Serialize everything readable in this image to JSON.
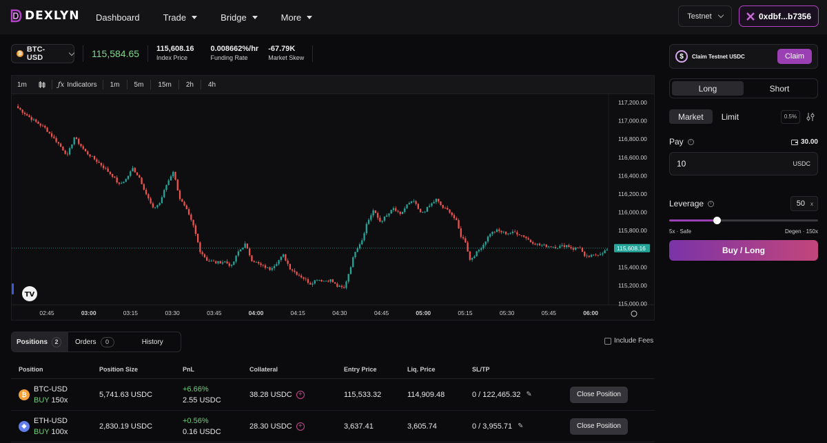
{
  "header": {
    "brand": "DEXLYN",
    "nav": [
      {
        "label": "Dashboard",
        "has_menu": false
      },
      {
        "label": "Trade",
        "has_menu": true
      },
      {
        "label": "Bridge",
        "has_menu": true
      },
      {
        "label": "More",
        "has_menu": true
      }
    ],
    "network": "Testnet",
    "wallet": "0xdbf...b7356"
  },
  "ticker": {
    "pair": "BTC-USD",
    "mark_price": "115,584.65",
    "index_price": "115,608.16",
    "index_price_label": "Index Price",
    "funding_rate": "0.008662%/hr",
    "funding_rate_label": "Funding Rate",
    "market_skew": "-67.79K",
    "market_skew_label": "Market Skew"
  },
  "chart_toolbar": {
    "interval": "1m",
    "indicators": "Indicators",
    "timeframes": [
      "1m",
      "5m",
      "15m",
      "2h",
      "4h"
    ]
  },
  "chart_data": {
    "type": "candlestick",
    "x_ticks": [
      "02:45",
      "03:00",
      "03:15",
      "03:30",
      "03:45",
      "04:00",
      "04:15",
      "04:30",
      "04:45",
      "05:00",
      "05:15",
      "05:30",
      "05:45",
      "06:00"
    ],
    "y_ticks": [
      "117,200.00",
      "117,000.00",
      "116,800.00",
      "116,600.00",
      "116,400.00",
      "116,200.00",
      "116,000.00",
      "115,800.00",
      "115,600.00",
      "115,400.00",
      "115,200.00",
      "115,000.00"
    ],
    "ylim": [
      114990,
      117290
    ],
    "last_price_label": "115,608.16",
    "last_price": 115608.16,
    "up_color": "#26a69a",
    "down_color": "#ef5350",
    "close_path": [
      [
        0,
        117140
      ],
      [
        6,
        117020
      ],
      [
        12,
        116920
      ],
      [
        18,
        116750
      ],
      [
        22,
        116620
      ],
      [
        25,
        116820
      ],
      [
        30,
        116660
      ],
      [
        36,
        116540
      ],
      [
        42,
        116400
      ],
      [
        45,
        116300
      ],
      [
        48,
        116360
      ],
      [
        51,
        116480
      ],
      [
        54,
        116380
      ],
      [
        57,
        116200
      ],
      [
        60,
        116040
      ],
      [
        63,
        116100
      ],
      [
        66,
        116300
      ],
      [
        69,
        116450
      ],
      [
        72,
        116150
      ],
      [
        75,
        116020
      ],
      [
        78,
        115850
      ],
      [
        81,
        115580
      ],
      [
        84,
        115480
      ],
      [
        88,
        115450
      ],
      [
        92,
        115460
      ],
      [
        95,
        115410
      ],
      [
        98,
        115570
      ],
      [
        101,
        115650
      ],
      [
        104,
        115480
      ],
      [
        108,
        115420
      ],
      [
        112,
        115380
      ],
      [
        115,
        115450
      ],
      [
        118,
        115530
      ],
      [
        121,
        115390
      ],
      [
        124,
        115330
      ],
      [
        127,
        115280
      ],
      [
        130,
        115220
      ],
      [
        133,
        115270
      ],
      [
        136,
        115250
      ],
      [
        139,
        115260
      ],
      [
        142,
        115190
      ],
      [
        145,
        115170
      ],
      [
        147,
        115330
      ],
      [
        150,
        115580
      ],
      [
        153,
        115700
      ],
      [
        155,
        115870
      ],
      [
        158,
        116020
      ],
      [
        161,
        115900
      ],
      [
        164,
        115960
      ],
      [
        167,
        116040
      ],
      [
        170,
        115970
      ],
      [
        173,
        116080
      ],
      [
        176,
        116120
      ],
      [
        179,
        115990
      ],
      [
        181,
        116020
      ],
      [
        183,
        116070
      ],
      [
        186,
        116140
      ],
      [
        189,
        116050
      ],
      [
        192,
        116010
      ],
      [
        195,
        115900
      ],
      [
        197,
        115740
      ],
      [
        199,
        115680
      ],
      [
        201,
        115480
      ],
      [
        204,
        115560
      ],
      [
        207,
        115650
      ],
      [
        210,
        115770
      ],
      [
        213,
        115800
      ],
      [
        217,
        115770
      ],
      [
        221,
        115780
      ],
      [
        225,
        115740
      ],
      [
        228,
        115680
      ],
      [
        232,
        115640
      ],
      [
        236,
        115630
      ],
      [
        240,
        115620
      ],
      [
        244,
        115640
      ],
      [
        247,
        115600
      ],
      [
        250,
        115620
      ],
      [
        252,
        115510
      ],
      [
        255,
        115520
      ],
      [
        259,
        115550
      ],
      [
        262,
        115590
      ]
    ]
  },
  "sidebar": {
    "claim_label": "Claim Testnet USDC",
    "claim_button": "Claim",
    "long_label": "Long",
    "short_label": "Short",
    "market_label": "Market",
    "limit_label": "Limit",
    "slippage": "0.5%",
    "pay_label": "Pay",
    "balance": "30.00",
    "pay_value": "10",
    "pay_unit": "USDC",
    "leverage_label": "Leverage",
    "leverage_value": "50",
    "leverage_unit": "x",
    "leverage_fraction": 0.32,
    "slider_min_label": "5x · Safe",
    "slider_max_label": "Degen · 150x",
    "action_button": "Buy / Long"
  },
  "bottom_tabs": [
    {
      "label": "Positions",
      "count": "2"
    },
    {
      "label": "Orders",
      "count": "0"
    },
    {
      "label": "History",
      "count": ""
    }
  ],
  "include_fees_label": "Include Fees",
  "positions_table": {
    "headers": [
      "Position",
      "Position Size",
      "PnL",
      "Collateral",
      "Entry Price",
      "Liq. Price",
      "SL/TP",
      ""
    ],
    "rows": [
      {
        "pair": "BTC-USD",
        "side": "BUY",
        "leverage": "150x",
        "size": "5,741.63 USDC",
        "pnl_pct": "+6.66%",
        "pnl": "2.55 USDC",
        "collateral": "38.28 USDC",
        "entry": "115,533.32",
        "liq": "114,909.48",
        "sltp": "0 / 122,465.32",
        "coin_color": "#f2a03a",
        "coin_glyph": "₿",
        "action": "Close Position"
      },
      {
        "pair": "ETH-USD",
        "side": "BUY",
        "leverage": "100x",
        "size": "2,830.19 USDC",
        "pnl_pct": "+0.56%",
        "pnl": "0.16 USDC",
        "collateral": "28.30 USDC",
        "entry": "3,637.41",
        "liq": "3,605.74",
        "sltp": "0 / 3,955.71",
        "coin_color": "#627eea",
        "coin_glyph": "◆",
        "action": "Close Position"
      }
    ]
  }
}
